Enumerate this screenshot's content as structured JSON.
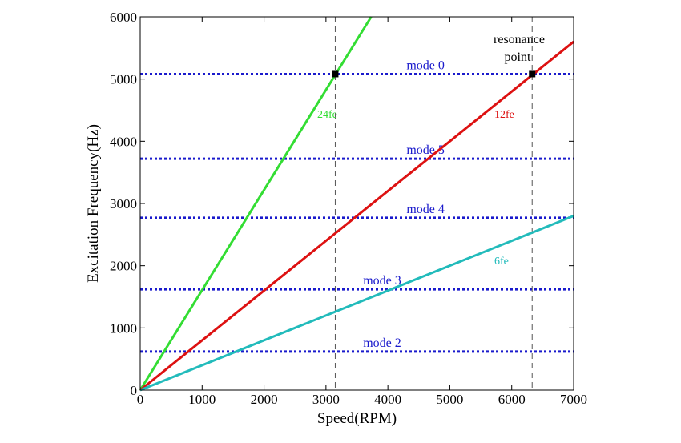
{
  "chart_data": {
    "type": "line",
    "title": "",
    "xlabel": "Speed(RPM)",
    "ylabel": "Excitation Frequency(Hz)",
    "xlim": [
      0,
      7000
    ],
    "ylim": [
      0,
      6000
    ],
    "xticks": [
      0,
      1000,
      2000,
      3000,
      4000,
      5000,
      6000,
      7000
    ],
    "yticks": [
      0,
      1000,
      2000,
      3000,
      4000,
      5000,
      6000
    ],
    "grid": false,
    "colors": {
      "24fe": "#33dd33",
      "12fe": "#dd1111",
      "6fe": "#22bbbb",
      "modes": "#1a1acc",
      "markers": "#000000",
      "guides": "#555555"
    },
    "series": [
      {
        "name": "24fe",
        "x": [
          0,
          3730
        ],
        "y": [
          0,
          6000
        ]
      },
      {
        "name": "12fe",
        "x": [
          0,
          7000
        ],
        "y": [
          0,
          5600
        ]
      },
      {
        "name": "6fe",
        "x": [
          0,
          7000
        ],
        "y": [
          0,
          2800
        ]
      }
    ],
    "modes": [
      {
        "label": "mode 0",
        "frequency": 5080,
        "label_x": 4300
      },
      {
        "label": "mode 5",
        "frequency": 3720,
        "label_x": 4300
      },
      {
        "label": "mode 4",
        "frequency": 2770,
        "label_x": 4300
      },
      {
        "label": "mode 3",
        "frequency": 1620,
        "label_x": 3600
      },
      {
        "label": "mode 2",
        "frequency": 620,
        "label_x": 3600
      }
    ],
    "resonance_points": [
      {
        "x": 3150,
        "y": 5080
      },
      {
        "x": 6330,
        "y": 5080
      }
    ],
    "annotations": {
      "resonance_line1": "resonance",
      "resonance_line2": "point",
      "label_24fe": "24fe",
      "label_12fe": "12fe",
      "label_6fe": "6fe"
    }
  }
}
